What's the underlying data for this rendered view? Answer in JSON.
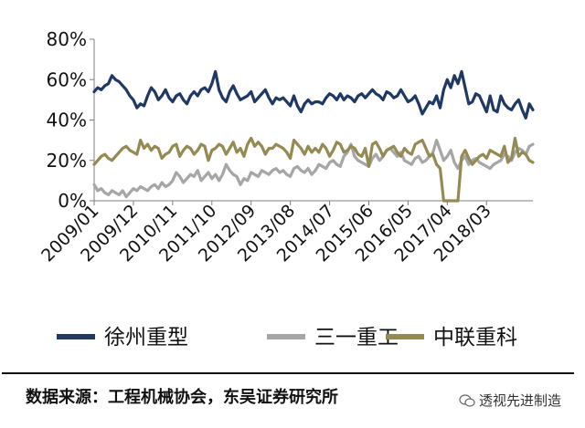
{
  "chart_data": {
    "type": "line",
    "x_tick_labels": [
      "2009/01",
      "2009/12",
      "2010/11",
      "2011/10",
      "2012/09",
      "2013/08",
      "2014/07",
      "2015/06",
      "2016/05",
      "2017/04",
      "2018/03"
    ],
    "y_tick_labels": [
      "0%",
      "20%",
      "40%",
      "60%",
      "80%"
    ],
    "ylim": [
      0,
      80
    ],
    "x_start": "2009/01",
    "months": 124,
    "grid": false,
    "legend_position": "bottom",
    "series": [
      {
        "name": "徐州重型",
        "color": "#1f3864",
        "values": [
          54,
          56,
          55,
          57,
          58,
          62,
          60,
          59,
          57,
          55,
          52,
          50,
          46,
          48,
          47,
          52,
          56,
          54,
          50,
          52,
          55,
          51,
          49,
          52,
          53,
          50,
          48,
          52,
          54,
          52,
          55,
          56,
          54,
          58,
          64,
          55,
          51,
          49,
          54,
          57,
          53,
          50,
          51,
          52,
          54,
          49,
          51,
          53,
          55,
          51,
          48,
          51,
          50,
          51,
          49,
          47,
          52,
          47,
          44,
          48,
          50,
          48,
          49,
          49,
          48,
          51,
          53,
          52,
          50,
          53,
          50,
          52,
          51,
          49,
          52,
          53,
          51,
          53,
          55,
          53,
          52,
          50,
          54,
          53,
          51,
          52,
          55,
          52,
          49,
          50,
          52,
          48,
          43,
          46,
          49,
          48,
          52,
          46,
          55,
          60,
          56,
          62,
          58,
          64,
          56,
          48,
          49,
          53,
          52,
          48,
          44,
          52,
          45,
          44,
          52,
          48,
          46,
          45,
          48,
          50,
          45,
          41,
          48,
          45
        ]
      },
      {
        "name": "三一重工",
        "color": "#a6a6a6",
        "values": [
          8,
          5,
          6,
          4,
          3,
          5,
          4,
          3,
          5,
          2,
          4,
          6,
          5,
          7,
          6,
          5,
          7,
          8,
          6,
          9,
          7,
          8,
          10,
          14,
          12,
          9,
          11,
          13,
          12,
          15,
          10,
          12,
          14,
          11,
          13,
          10,
          13,
          18,
          15,
          13,
          12,
          8,
          11,
          10,
          14,
          13,
          12,
          15,
          14,
          13,
          15,
          16,
          14,
          15,
          13,
          12,
          16,
          17,
          15,
          14,
          16,
          13,
          15,
          18,
          17,
          16,
          19,
          20,
          18,
          17,
          22,
          24,
          28,
          22,
          20,
          19,
          18,
          17,
          21,
          23,
          20,
          22,
          25,
          26,
          24,
          22,
          24,
          20,
          19,
          18,
          21,
          22,
          19,
          20,
          22,
          24,
          30,
          25,
          20,
          22,
          25,
          19,
          16,
          20,
          22,
          18,
          20,
          21,
          19,
          18,
          17,
          16,
          18,
          19,
          20,
          23,
          22,
          20,
          24,
          26,
          25,
          23,
          27,
          28
        ]
      },
      {
        "name": "中联重科",
        "color": "#948a54",
        "values": [
          18,
          20,
          22,
          23,
          21,
          20,
          22,
          24,
          26,
          27,
          25,
          24,
          23,
          30,
          26,
          28,
          25,
          27,
          26,
          21,
          23,
          24,
          27,
          28,
          22,
          25,
          27,
          26,
          23,
          25,
          28,
          27,
          20,
          25,
          26,
          28,
          27,
          23,
          26,
          29,
          24,
          26,
          22,
          28,
          31,
          27,
          29,
          27,
          23,
          26,
          26,
          28,
          27,
          26,
          24,
          21,
          30,
          28,
          26,
          23,
          27,
          24,
          26,
          24,
          28,
          26,
          22,
          25,
          29,
          28,
          24,
          25,
          27,
          26,
          23,
          22,
          26,
          17,
          28,
          29,
          26,
          22,
          25,
          26,
          27,
          24,
          22,
          26,
          24,
          23,
          28,
          29,
          30,
          26,
          22,
          23,
          18,
          16,
          0,
          0,
          0,
          0,
          0,
          22,
          25,
          21,
          18,
          20,
          22,
          23,
          21,
          25,
          24,
          23,
          22,
          27,
          19,
          21,
          31,
          22,
          24,
          23,
          20,
          19
        ]
      }
    ]
  },
  "source": "数据来源：工程机械协会，东吴证券研究所",
  "watermark": "透视先进制造"
}
